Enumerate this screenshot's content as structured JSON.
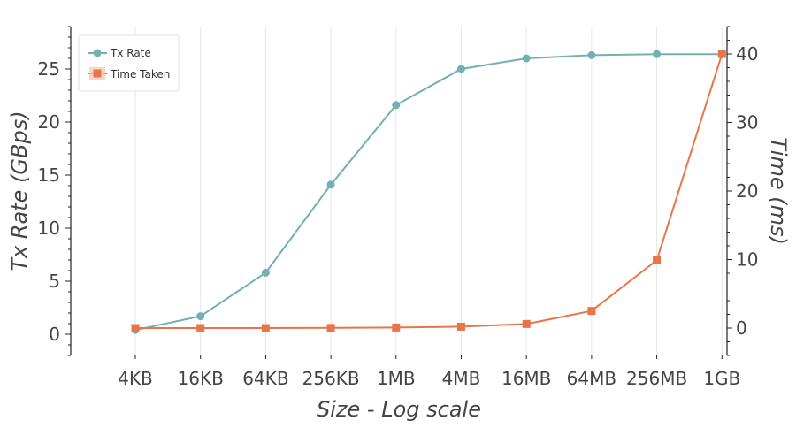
{
  "chart_data": {
    "type": "line",
    "x_scale": "log2",
    "categories": [
      "4KB",
      "16KB",
      "64KB",
      "256KB",
      "1MB",
      "4MB",
      "16MB",
      "64MB",
      "256MB",
      "1GB"
    ],
    "xlabel": "Size - Log scale",
    "ylabel_left": "Tx Rate (GBps)",
    "ylabel_right": "Time (ms)",
    "ylim_left": [
      -2,
      29
    ],
    "ylim_right": [
      -4,
      44
    ],
    "yticks_left": [
      0,
      5,
      10,
      15,
      20,
      25
    ],
    "yticks_right": [
      0,
      10,
      20,
      30,
      40
    ],
    "grid": "vertical",
    "legend_position": "top-left",
    "series": [
      {
        "name": "Tx Rate",
        "axis": "left",
        "marker": "circle",
        "color": "#72b0b4",
        "values": [
          0.4,
          1.7,
          5.8,
          14.1,
          21.6,
          25.0,
          26.0,
          26.3,
          26.4,
          26.4
        ]
      },
      {
        "name": "Time Taken",
        "axis": "right",
        "marker": "square",
        "color": "#e8754a",
        "values": [
          0.0,
          0.0,
          0.0,
          0.02,
          0.08,
          0.2,
          0.6,
          2.5,
          9.9,
          40.0
        ]
      }
    ]
  }
}
